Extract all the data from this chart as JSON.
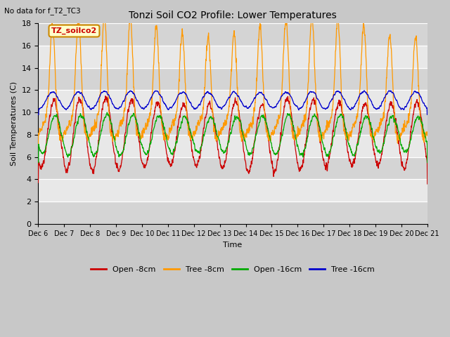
{
  "title": "Tonzi Soil CO2 Profile: Lower Temperatures",
  "subtitle": "No data for f_T2_TC3",
  "ylabel": "Soil Temperatures (C)",
  "xlabel": "Time",
  "ylim": [
    0,
    18
  ],
  "yticks": [
    0,
    2,
    4,
    6,
    8,
    10,
    12,
    14,
    16,
    18
  ],
  "xtick_labels": [
    "Dec 6",
    "Dec 7",
    "Dec 8",
    "Dec 9",
    "Dec 10",
    "Dec 11",
    "Dec 12",
    "Dec 13",
    "Dec 14",
    "Dec 15",
    "Dec 16",
    "Dec 17",
    "Dec 18",
    "Dec 19",
    "Dec 20",
    "Dec 21"
  ],
  "legend_labels": [
    "Open -8cm",
    "Tree -8cm",
    "Open -16cm",
    "Tree -16cm"
  ],
  "legend_colors": [
    "#cc0000",
    "#ff9900",
    "#00aa00",
    "#0000cc"
  ],
  "inset_label": "TZ_soilco2",
  "inset_bg": "#ffffcc",
  "inset_border": "#cc8800",
  "fig_bg": "#c8c8c8",
  "plot_bg_light": "#e8e8e8",
  "plot_bg_dark": "#d4d4d4",
  "num_days": 15,
  "samples_per_day": 144
}
